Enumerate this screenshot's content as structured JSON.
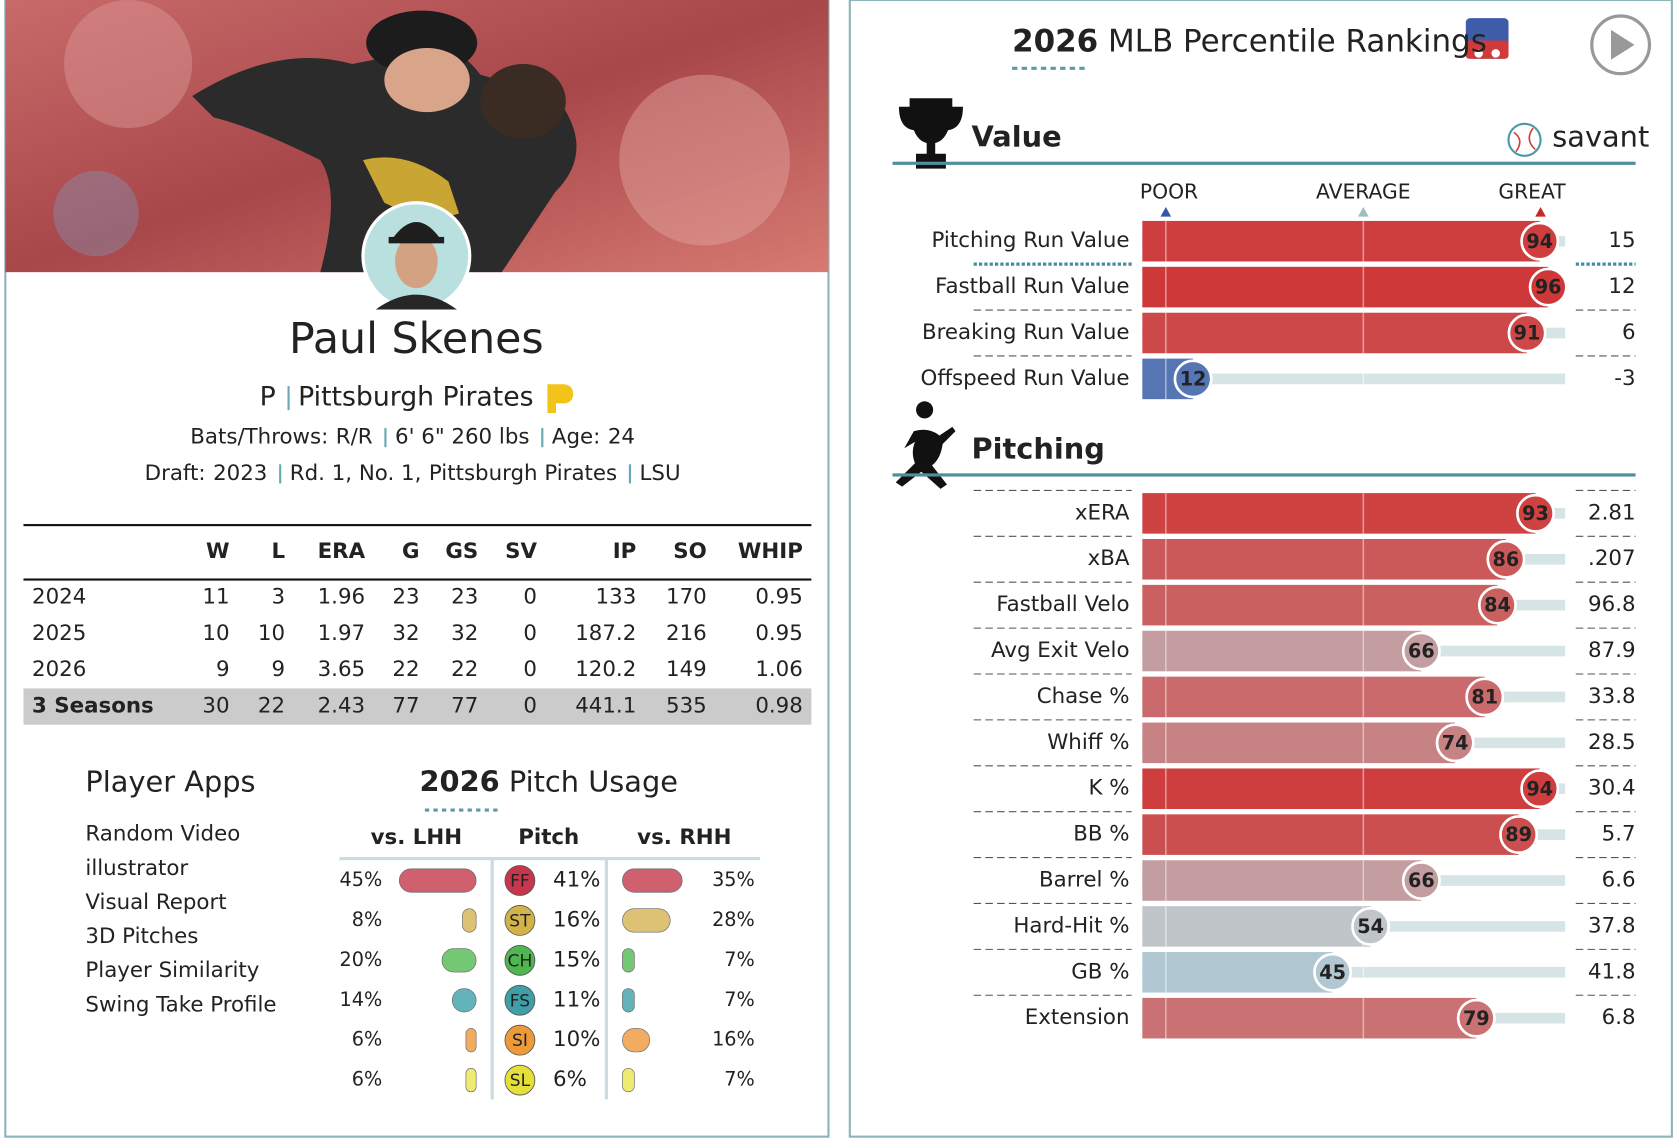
{
  "player": {
    "name": "Paul Skenes",
    "position": "P",
    "team": "Pittsburgh Pirates",
    "bats_throws_label": "Bats/Throws:",
    "bats_throws": "R/R",
    "height_weight": "6' 6\" 260 lbs",
    "age_label": "Age:",
    "age": "24",
    "draft_label": "Draft:",
    "draft_year": "2023",
    "draft_pick": "Rd. 1, No. 1,",
    "draft_team": "Pittsburgh Pirates",
    "school": "LSU"
  },
  "stats": {
    "columns": [
      "W",
      "L",
      "ERA",
      "G",
      "GS",
      "SV",
      "IP",
      "SO",
      "WHIP"
    ],
    "rows": [
      [
        "2024",
        "11",
        "3",
        "1.96",
        "23",
        "23",
        "0",
        "133",
        "170",
        "0.95"
      ],
      [
        "2025",
        "10",
        "10",
        "1.97",
        "32",
        "32",
        "0",
        "187.2",
        "216",
        "0.95"
      ],
      [
        "2026",
        "9",
        "9",
        "3.65",
        "22",
        "22",
        "0",
        "120.2",
        "149",
        "1.06"
      ],
      [
        "3 Seasons",
        "30",
        "22",
        "2.43",
        "77",
        "77",
        "0",
        "441.1",
        "535",
        "0.98"
      ]
    ]
  },
  "apps": {
    "title": "Player Apps",
    "links": [
      "Random Video",
      "illustrator",
      "Visual Report",
      "3D Pitches",
      "Player Similarity",
      "Swing Take Profile"
    ]
  },
  "pitch_usage": {
    "title_year": "2026",
    "title": "Pitch Usage",
    "columns": [
      "vs. LHH",
      "Pitch",
      "vs. RHH"
    ],
    "rows": [
      {
        "code": "FF",
        "vs_lhh": "45%",
        "usage": "41%",
        "vs_rhh": "35%",
        "color": "#c8364c",
        "bar_color": "#d0606e"
      },
      {
        "code": "ST",
        "vs_lhh": "8%",
        "usage": "16%",
        "vs_rhh": "28%",
        "color": "#d3b24a",
        "bar_color": "#dcc272"
      },
      {
        "code": "CH",
        "vs_lhh": "20%",
        "usage": "15%",
        "vs_rhh": "7%",
        "color": "#4fb650",
        "bar_color": "#74c874"
      },
      {
        "code": "FS",
        "vs_lhh": "14%",
        "usage": "11%",
        "vs_rhh": "7%",
        "color": "#3f9fa6",
        "bar_color": "#62b4ba"
      },
      {
        "code": "SI",
        "vs_lhh": "6%",
        "usage": "10%",
        "vs_rhh": "16%",
        "color": "#ee9a38",
        "bar_color": "#f2ac62"
      },
      {
        "code": "SL",
        "vs_lhh": "6%",
        "usage": "6%",
        "vs_rhh": "7%",
        "color": "#e6df3a",
        "bar_color": "#efea72"
      }
    ]
  },
  "rankings": {
    "title_year": "2026",
    "title": "MLB Percentile Rankings",
    "brand": "savant",
    "scale": [
      "POOR",
      "AVERAGE",
      "GREAT"
    ],
    "sections": [
      {
        "title": "Value",
        "rows": [
          {
            "label": "Pitching Run Value",
            "percentile": 94,
            "value": "15"
          },
          {
            "label": "Fastball Run Value",
            "percentile": 96,
            "value": "12"
          },
          {
            "label": "Breaking Run Value",
            "percentile": 91,
            "value": "6"
          },
          {
            "label": "Offspeed Run Value",
            "percentile": 12,
            "value": "-3"
          }
        ]
      },
      {
        "title": "Pitching",
        "rows": [
          {
            "label": "xERA",
            "percentile": 93,
            "value": "2.81"
          },
          {
            "label": "xBA",
            "percentile": 86,
            "value": ".207"
          },
          {
            "label": "Fastball Velo",
            "percentile": 84,
            "value": "96.8"
          },
          {
            "label": "Avg Exit Velo",
            "percentile": 66,
            "value": "87.9"
          },
          {
            "label": "Chase %",
            "percentile": 81,
            "value": "33.8"
          },
          {
            "label": "Whiff %",
            "percentile": 74,
            "value": "28.5"
          },
          {
            "label": "K %",
            "percentile": 94,
            "value": "30.4"
          },
          {
            "label": "BB %",
            "percentile": 89,
            "value": "5.7"
          },
          {
            "label": "Barrel %",
            "percentile": 66,
            "value": "6.6"
          },
          {
            "label": "Hard-Hit %",
            "percentile": 54,
            "value": "37.8"
          },
          {
            "label": "GB %",
            "percentile": 45,
            "value": "41.8"
          },
          {
            "label": "Extension",
            "percentile": 79,
            "value": "6.8"
          }
        ]
      }
    ]
  }
}
